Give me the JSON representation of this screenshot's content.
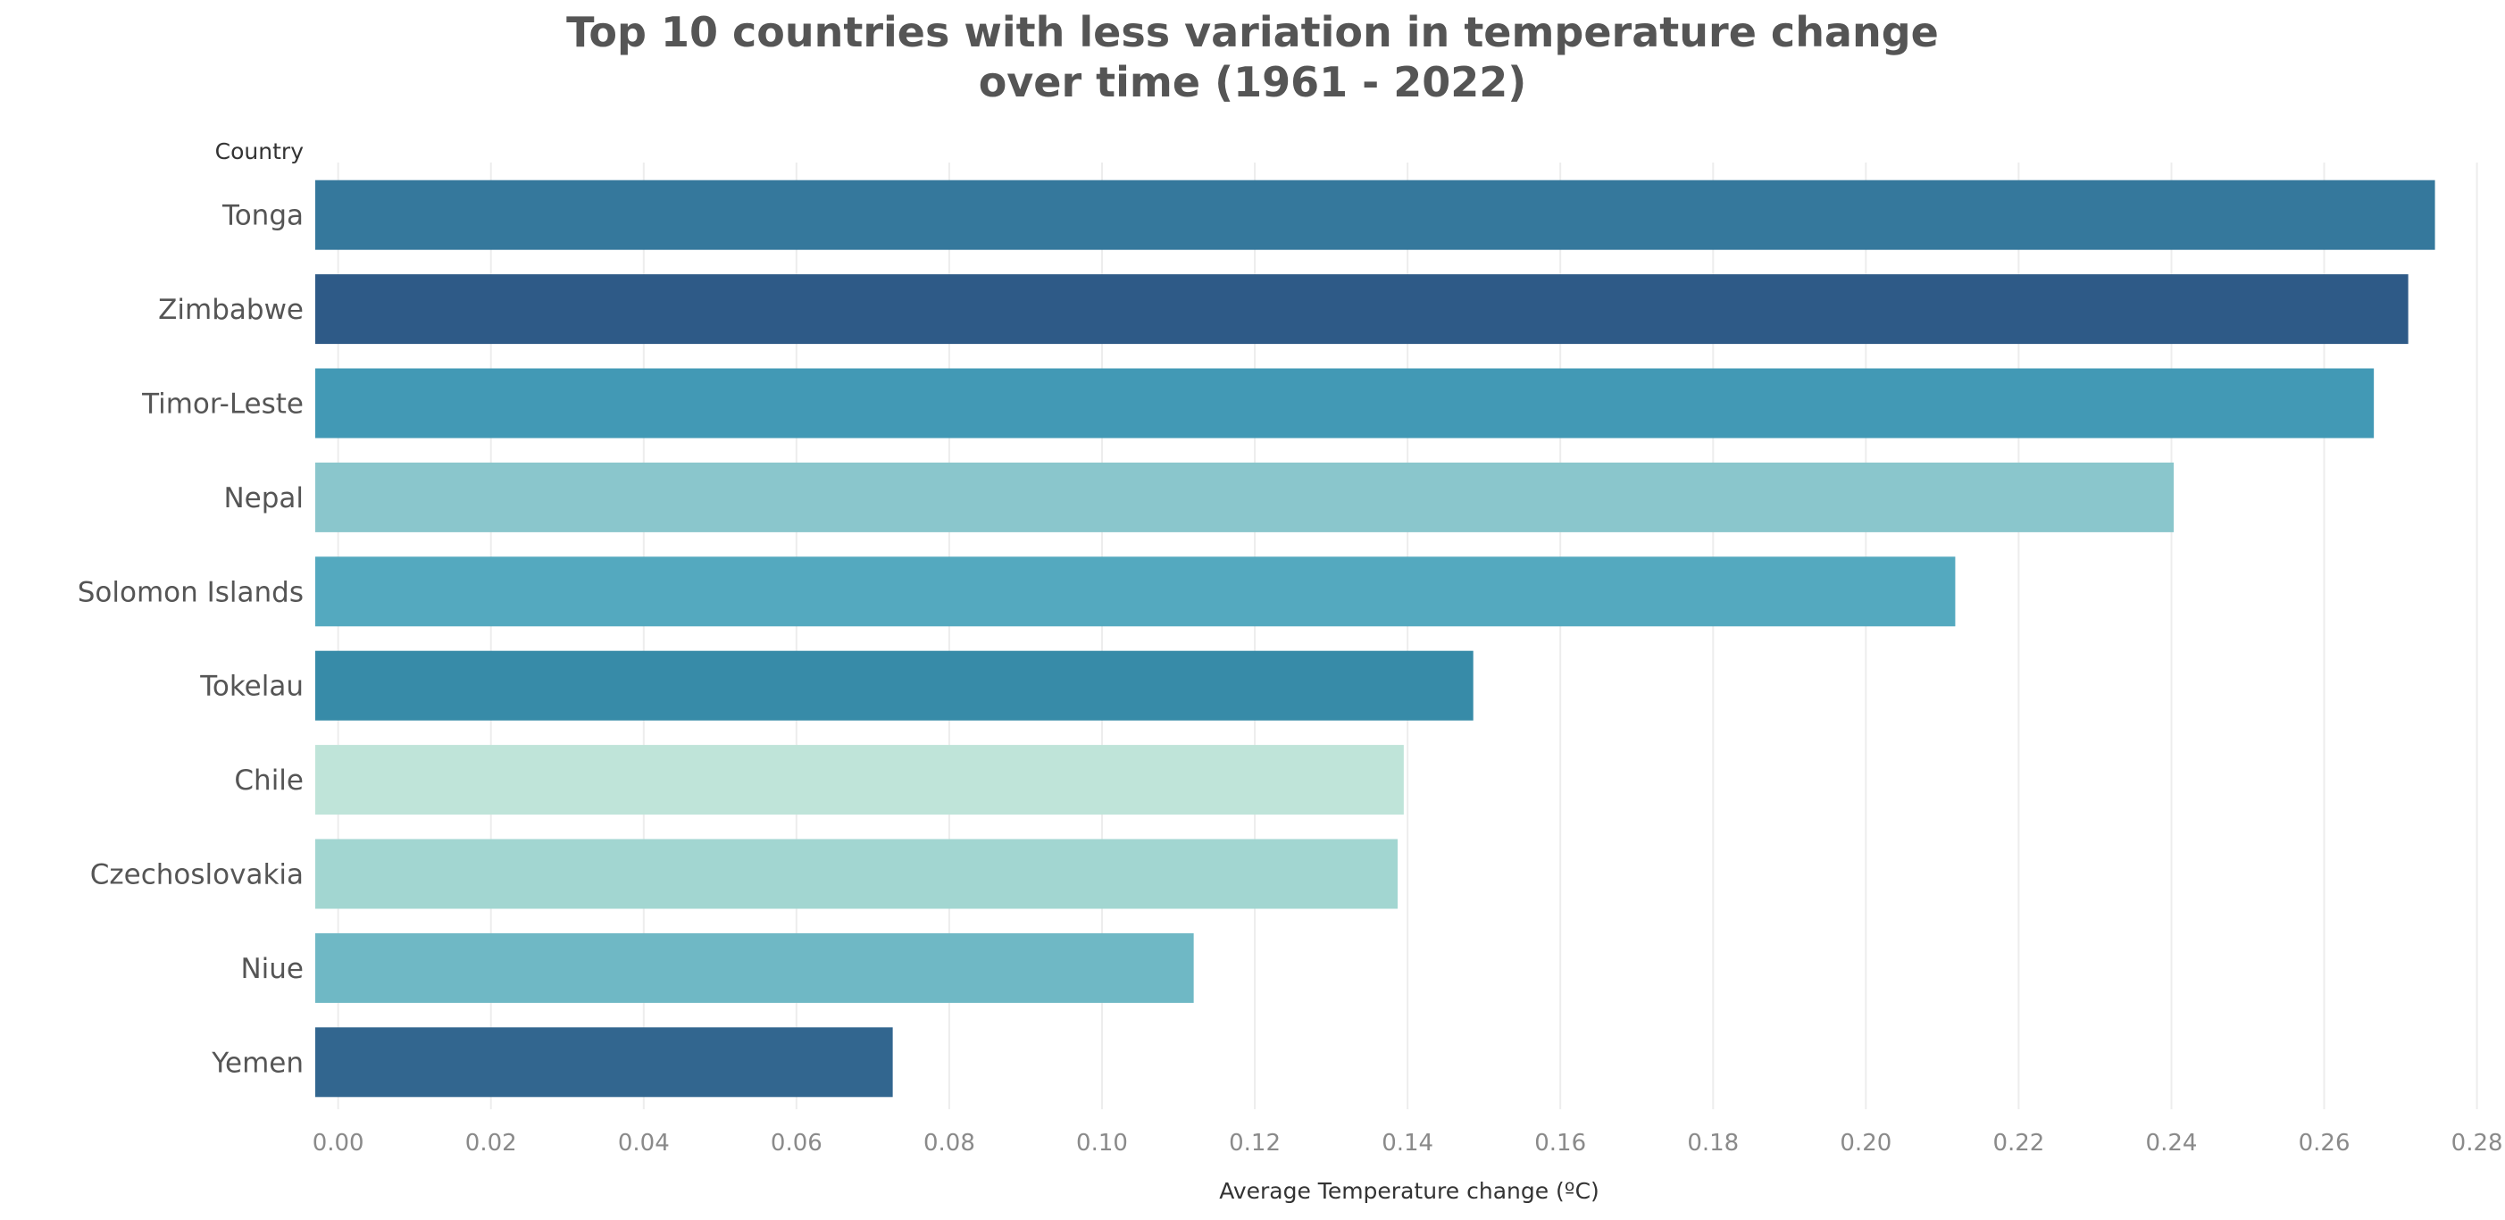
{
  "chart_data": {
    "type": "bar",
    "orientation": "horizontal",
    "title_lines": [
      "Top 10 countries with less variation in temperature change",
      "over time (1961 - 2022)"
    ],
    "title": "Top 10 countries with less variation in temperature change over time (1961 - 2022)",
    "ylabel": "Country",
    "xlabel": "Average Temperature change (ºC)",
    "categories": [
      "Tonga",
      "Zimbabwe",
      "Timor-Leste",
      "Nepal",
      "Solomon Islands",
      "Tokelau",
      "Chile",
      "Czechoslovakia",
      "Niue",
      "Yemen"
    ],
    "values": [
      0.2745,
      0.271,
      0.2665,
      0.2403,
      0.2117,
      0.1486,
      0.1395,
      0.1387,
      0.112,
      0.0726
    ],
    "colors": [
      "#35789c",
      "#2e5a87",
      "#4299b5",
      "#8ac6cc",
      "#54a9bf",
      "#378ba8",
      "#bfe4d9",
      "#a2d6d1",
      "#6fb8c5",
      "#32668f"
    ],
    "xlim": [
      -0.003,
      0.2825
    ],
    "ticks": [
      0.0,
      0.02,
      0.04,
      0.06,
      0.08,
      0.1,
      0.12,
      0.14,
      0.16,
      0.18,
      0.2,
      0.22,
      0.24,
      0.26,
      0.28
    ],
    "tick_labels": [
      "0.00",
      "0.02",
      "0.04",
      "0.06",
      "0.08",
      "0.10",
      "0.12",
      "0.14",
      "0.16",
      "0.18",
      "0.20",
      "0.22",
      "0.24",
      "0.26",
      "0.28"
    ],
    "grid": true,
    "legend": "none"
  }
}
